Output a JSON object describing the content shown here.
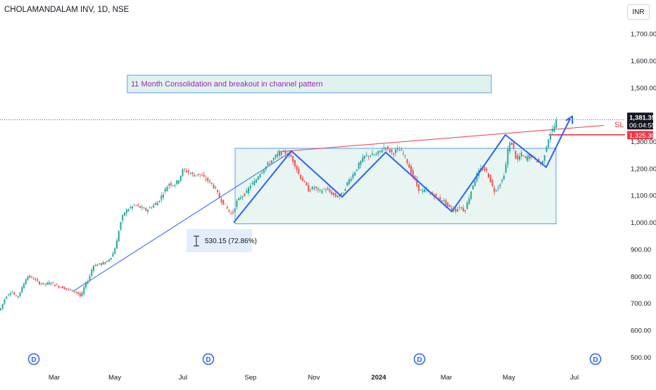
{
  "header": {
    "title": "CHOLAMANDALAM INV, 1D, NSE",
    "currency": "INR"
  },
  "colors": {
    "up": "#26a69a",
    "down": "#ef5350",
    "pattern": "#2962ff",
    "resistance": "#f23645",
    "box_fill": "#e0f2ee",
    "box_stroke": "#5b9cf5",
    "annotation_text": "#9c27b0",
    "price_badge": "#131722",
    "sl_badge": "#f23645",
    "event_marker": "#2962ff"
  },
  "chart_data": {
    "type": "candlestick",
    "title": "CHOLAMANDALAM INV, 1D, NSE",
    "currency": "INR",
    "x_ticks": [
      {
        "label": "Mar",
        "bold": false
      },
      {
        "label": "May",
        "bold": false
      },
      {
        "label": "Jul",
        "bold": false
      },
      {
        "label": "Sep",
        "bold": false
      },
      {
        "label": "Nov",
        "bold": false
      },
      {
        "label": "2024",
        "bold": true
      },
      {
        "label": "Mar",
        "bold": false
      },
      {
        "label": "May",
        "bold": false
      },
      {
        "label": "Jul",
        "bold": false
      }
    ],
    "y_ticks": [
      {
        "value": 500,
        "label": "500.00"
      },
      {
        "value": 600,
        "label": "600.00"
      },
      {
        "value": 700,
        "label": "700.00"
      },
      {
        "value": 800,
        "label": "800.00"
      },
      {
        "value": 900,
        "label": "900.00"
      },
      {
        "value": 1000,
        "label": "1,000.00"
      },
      {
        "value": 1100,
        "label": "1,100.00"
      },
      {
        "value": 1200,
        "label": "1,200.00"
      },
      {
        "value": 1300,
        "label": "1,300.00"
      },
      {
        "value": 1400,
        "label": "1,400.00"
      },
      {
        "value": 1500,
        "label": "1,500.00"
      },
      {
        "value": 1600,
        "label": "1,600.00"
      },
      {
        "value": 1700,
        "label": "1,700.00"
      }
    ],
    "ylim": [
      475,
      1760
    ],
    "price_path": [
      [
        0,
        675
      ],
      [
        8,
        725
      ],
      [
        16,
        745
      ],
      [
        24,
        720
      ],
      [
        32,
        760
      ],
      [
        38,
        800
      ],
      [
        46,
        795
      ],
      [
        56,
        775
      ],
      [
        64,
        770
      ],
      [
        72,
        778
      ],
      [
        80,
        765
      ],
      [
        88,
        760
      ],
      [
        96,
        752
      ],
      [
        104,
        745
      ],
      [
        110,
        740
      ],
      [
        115,
        722
      ],
      [
        120,
        765
      ],
      [
        126,
        790
      ],
      [
        132,
        840
      ],
      [
        140,
        845
      ],
      [
        150,
        850
      ],
      [
        160,
        880
      ],
      [
        166,
        930
      ],
      [
        170,
        990
      ],
      [
        176,
        1035
      ],
      [
        182,
        1050
      ],
      [
        192,
        1065
      ],
      [
        200,
        1055
      ],
      [
        208,
        1045
      ],
      [
        216,
        1060
      ],
      [
        224,
        1075
      ],
      [
        232,
        1110
      ],
      [
        240,
        1145
      ],
      [
        248,
        1140
      ],
      [
        254,
        1160
      ],
      [
        260,
        1195
      ],
      [
        266,
        1190
      ],
      [
        274,
        1175
      ],
      [
        282,
        1180
      ],
      [
        290,
        1165
      ],
      [
        298,
        1150
      ],
      [
        306,
        1125
      ],
      [
        312,
        1090
      ],
      [
        318,
        1070
      ],
      [
        324,
        1045
      ],
      [
        330,
        1030
      ],
      [
        336,
        1075
      ],
      [
        342,
        1095
      ],
      [
        350,
        1110
      ],
      [
        356,
        1140
      ],
      [
        362,
        1150
      ],
      [
        368,
        1180
      ],
      [
        374,
        1195
      ],
      [
        380,
        1215
      ],
      [
        388,
        1235
      ],
      [
        396,
        1255
      ],
      [
        404,
        1260
      ],
      [
        412,
        1250
      ],
      [
        420,
        1210
      ],
      [
        426,
        1170
      ],
      [
        432,
        1150
      ],
      [
        438,
        1120
      ],
      [
        446,
        1130
      ],
      [
        454,
        1115
      ],
      [
        462,
        1125
      ],
      [
        470,
        1110
      ],
      [
        478,
        1095
      ],
      [
        486,
        1105
      ],
      [
        494,
        1150
      ],
      [
        502,
        1180
      ],
      [
        510,
        1215
      ],
      [
        518,
        1245
      ],
      [
        526,
        1250
      ],
      [
        534,
        1250
      ],
      [
        540,
        1265
      ],
      [
        546,
        1280
      ],
      [
        552,
        1270
      ],
      [
        558,
        1255
      ],
      [
        564,
        1270
      ],
      [
        570,
        1265
      ],
      [
        576,
        1240
      ],
      [
        582,
        1200
      ],
      [
        588,
        1165
      ],
      [
        594,
        1125
      ],
      [
        600,
        1115
      ],
      [
        606,
        1120
      ],
      [
        612,
        1105
      ],
      [
        618,
        1100
      ],
      [
        624,
        1085
      ],
      [
        630,
        1080
      ],
      [
        636,
        1060
      ],
      [
        642,
        1050
      ],
      [
        648,
        1045
      ],
      [
        654,
        1060
      ],
      [
        660,
        1040
      ],
      [
        666,
        1090
      ],
      [
        672,
        1140
      ],
      [
        678,
        1180
      ],
      [
        684,
        1200
      ],
      [
        690,
        1195
      ],
      [
        696,
        1160
      ],
      [
        702,
        1115
      ],
      [
        708,
        1135
      ],
      [
        714,
        1160
      ],
      [
        718,
        1200
      ],
      [
        722,
        1280
      ],
      [
        726,
        1300
      ],
      [
        730,
        1270
      ],
      [
        734,
        1225
      ],
      [
        740,
        1255
      ],
      [
        746,
        1235
      ],
      [
        752,
        1250
      ],
      [
        758,
        1240
      ],
      [
        764,
        1225
      ],
      [
        770,
        1215
      ],
      [
        776,
        1280
      ],
      [
        780,
        1320
      ],
      [
        784,
        1340
      ],
      [
        788,
        1360
      ],
      [
        791,
        1381
      ]
    ],
    "pattern_line": [
      [
        332,
        1000
      ],
      [
        414,
        1265
      ],
      [
        486,
        1095
      ],
      [
        548,
        1260
      ],
      [
        642,
        1040
      ],
      [
        718,
        1325
      ],
      [
        776,
        1205
      ],
      [
        810,
        1385
      ]
    ],
    "breakout_arrow_end": [
      813,
      1394
    ],
    "trend_line": [
      [
        104,
        745
      ],
      [
        414,
        1263
      ]
    ],
    "resistance_line": [
      [
        395,
        1262
      ],
      [
        858,
        1360
      ]
    ],
    "sl_level": 1325.3,
    "current_price": 1381.35,
    "consolidation_box": {
      "x_start": 334,
      "x_end": 790,
      "y_low": 995,
      "y_high": 1275
    },
    "annotation": "11 Month Consolidation and breakout in channel pattern",
    "measure_label": "530.15 (72.86%)",
    "price_label": "1,381.35",
    "countdown": "06:04:55",
    "sl_label": "1,325.30",
    "sl_text": "SL",
    "event_markers": [
      "D",
      "D",
      "D",
      "D"
    ]
  }
}
